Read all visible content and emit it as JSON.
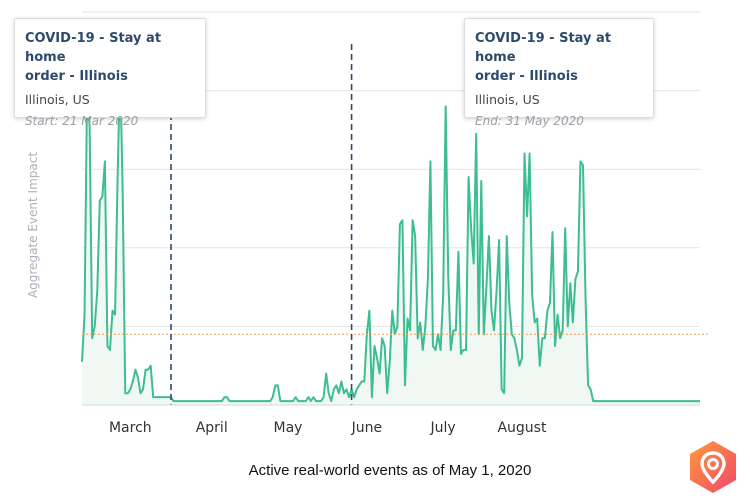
{
  "chart_data": {
    "type": "line",
    "title": "",
    "xlabel": "",
    "ylabel": "Aggregate Event Impact",
    "x_start": "2020-02-15",
    "x_tick_labels": [
      {
        "label": "March",
        "day": 19
      },
      {
        "label": "April",
        "day": 51
      },
      {
        "label": "May",
        "day": 81
      },
      {
        "label": "June",
        "day": 112
      },
      {
        "label": "July",
        "day": 142
      },
      {
        "label": "August",
        "day": 173
      }
    ],
    "ylim": [
      0,
      100
    ],
    "grid": true,
    "reference_line": 18,
    "series": [
      {
        "name": "Aggregate Event Impact",
        "values": [
          11,
          23,
          80,
          71,
          17,
          20,
          29,
          52,
          53,
          62,
          15,
          14,
          24,
          23,
          58,
          86,
          54,
          3,
          3,
          4,
          6,
          9,
          7,
          3,
          4,
          9,
          9,
          10,
          2,
          2,
          2,
          2,
          2,
          2,
          2,
          2,
          1,
          1,
          1,
          1,
          1,
          1,
          1,
          1,
          1,
          1,
          1,
          1,
          1,
          1,
          1,
          1,
          1,
          1,
          1,
          1,
          2,
          2,
          1,
          1,
          1,
          1,
          1,
          1,
          1,
          1,
          1,
          1,
          1,
          1,
          1,
          1,
          1,
          1,
          1,
          2,
          5,
          5,
          1,
          1,
          1,
          1,
          1,
          1,
          2,
          1,
          1,
          1,
          1,
          2,
          1,
          2,
          1,
          1,
          1,
          2,
          8,
          3,
          1,
          4,
          5,
          3,
          6,
          3,
          4,
          2,
          4,
          2,
          4,
          5,
          6,
          6,
          18,
          24,
          2,
          15,
          12,
          8,
          17,
          15,
          3,
          11,
          24,
          18,
          20,
          46,
          47,
          5,
          22,
          19,
          47,
          43,
          17,
          21,
          14,
          20,
          32,
          62,
          15,
          14,
          18,
          14,
          28,
          76,
          33,
          14,
          19,
          19,
          39,
          13,
          14,
          14,
          58,
          45,
          36,
          69,
          18,
          57,
          18,
          30,
          43,
          24,
          19,
          29,
          42,
          4,
          3,
          43,
          26,
          18,
          17,
          14,
          10,
          12,
          64,
          48,
          64,
          28,
          21,
          22,
          10,
          17,
          17,
          24,
          26,
          44,
          15,
          23,
          17,
          19,
          45,
          20,
          31,
          21,
          32,
          34,
          62,
          61,
          27,
          5,
          4,
          1,
          1,
          1,
          1,
          1,
          1,
          1,
          1,
          1,
          1,
          1,
          1,
          1,
          1,
          1,
          1,
          1,
          1,
          1,
          1,
          1,
          1,
          1,
          1,
          1,
          1,
          1,
          1,
          1,
          1,
          1,
          1,
          1,
          1,
          1,
          1,
          1,
          1,
          1,
          1,
          1,
          1,
          1
        ]
      }
    ],
    "events": [
      {
        "title": "COVID-19 - Stay at home order - Illinois",
        "location": "Illinois, US",
        "date_label": "Start: 21 Mar 2020",
        "day": 35
      },
      {
        "title": "COVID-19 - Stay at home order - Illinois",
        "location": "Illinois, US",
        "date_label": "End: 31 May 2020",
        "day": 106
      }
    ],
    "caption": "Active real-world events as of May 1, 2020"
  },
  "tooltips": {
    "start": {
      "title_line1": "COVID-19 - Stay at home",
      "title_line2": "order - Illinois",
      "location": "Illinois, US",
      "date": "Start: 21 Mar 2020"
    },
    "end": {
      "title_line1": "COVID-19 - Stay at home",
      "title_line2": "order - Illinois",
      "location": "Illinois, US",
      "date": "End: 31 May 2020"
    }
  },
  "colors": {
    "line": "#3dbd92",
    "area": "#f1f7f3",
    "grid": "#e2e4e6",
    "marker": "#2d4a6b",
    "reference": "#f0a060",
    "tick_text": "#333333"
  }
}
